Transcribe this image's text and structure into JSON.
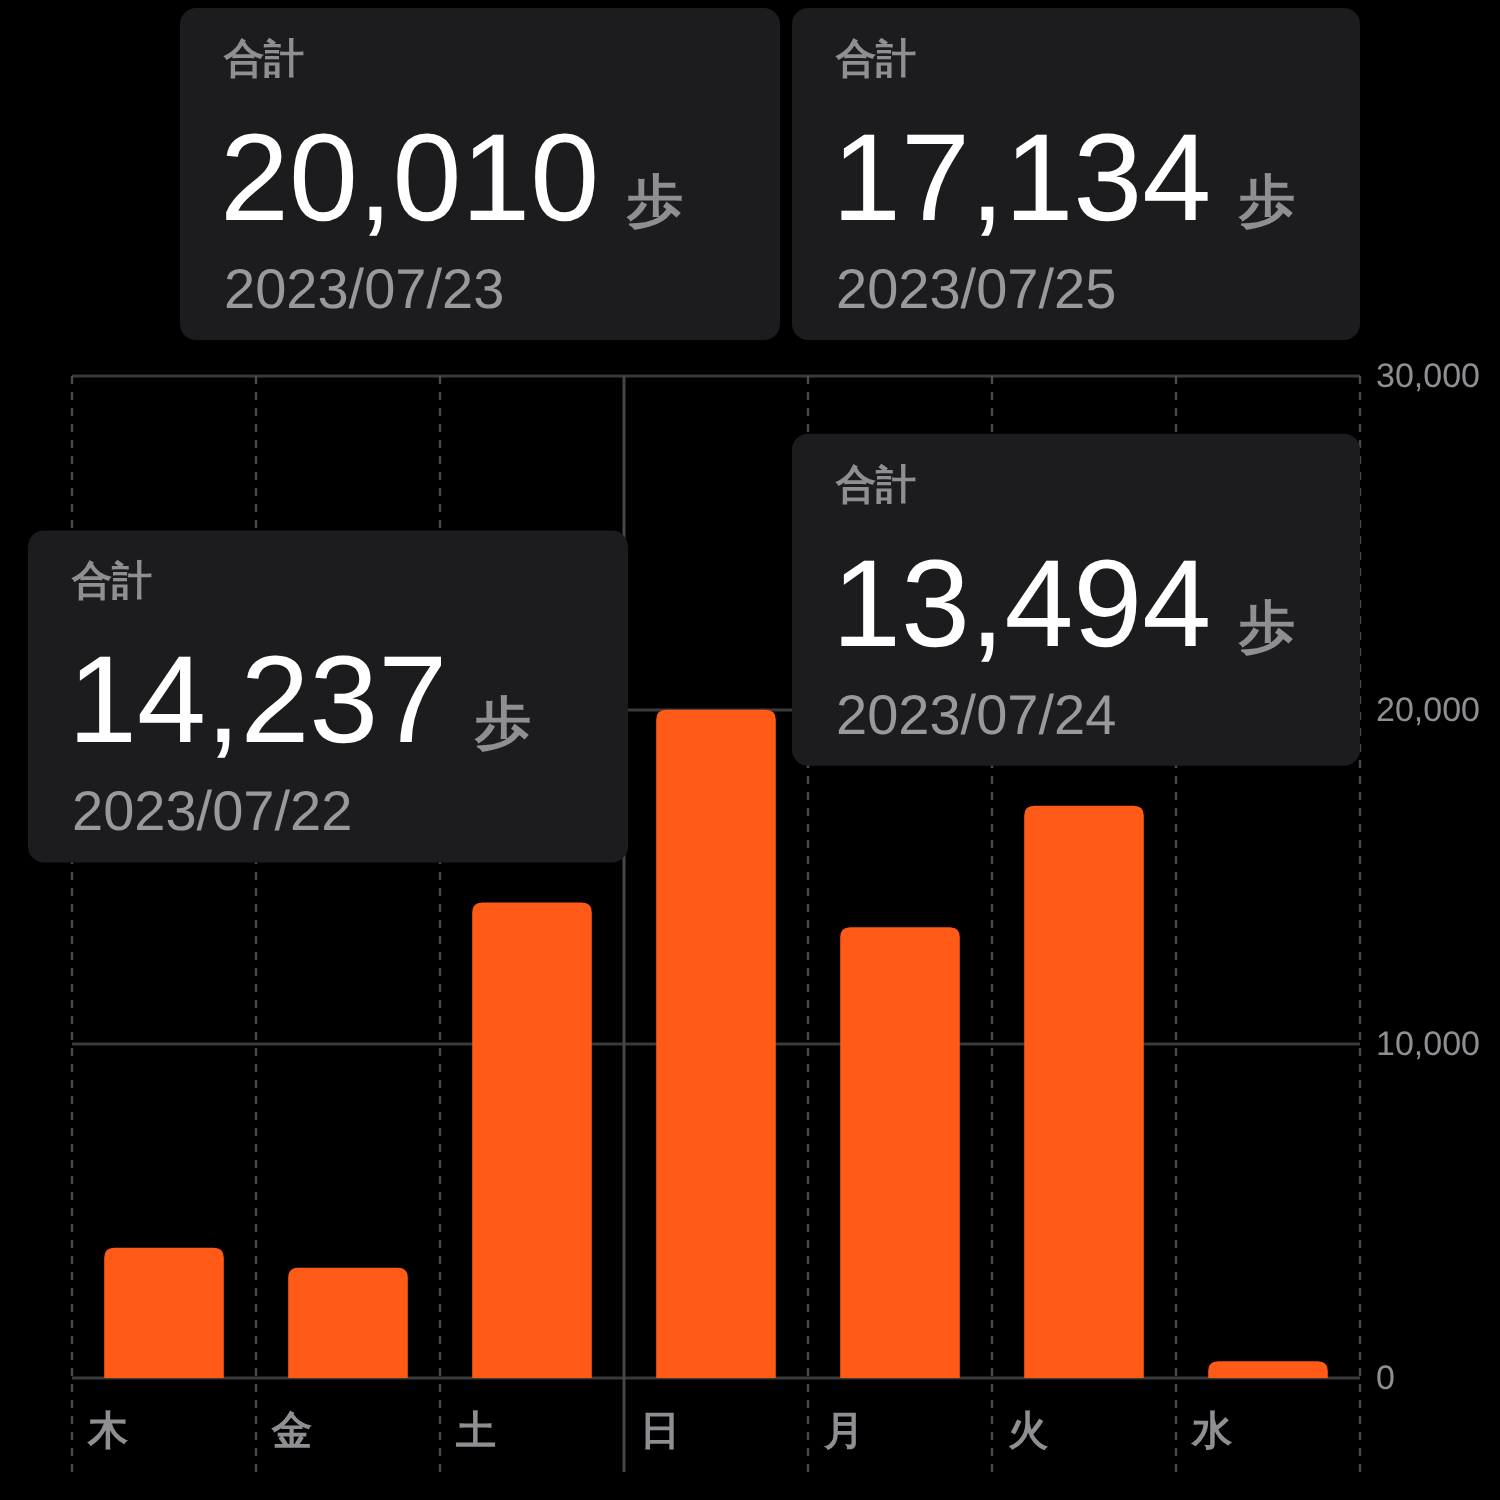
{
  "chart_data": {
    "type": "bar",
    "categories": [
      "木",
      "金",
      "土",
      "日",
      "月",
      "火",
      "水"
    ],
    "values": [
      3900,
      3300,
      14237,
      20010,
      13494,
      17134,
      500
    ],
    "color": "#ff5a17",
    "ylim": [
      0,
      30000
    ],
    "yticks": [
      0,
      {
        "value": 10000,
        "label": "10,000"
      },
      {
        "value": 20000,
        "label": "20,000"
      },
      {
        "value": 30000,
        "label": "30,000"
      }
    ],
    "grid": true,
    "ref_lines": [
      {
        "axis": "x",
        "value": "日",
        "line_style": "solid",
        "color": "#48484a"
      }
    ],
    "annotations": [
      "合計\n20,010 歩\n2023/07/23",
      "合計\n17,134 歩\n2023/07/25",
      "合計\n14,237 歩\n2023/07/22",
      "合計\n13,494 歩\n2023/07/24"
    ]
  }
}
